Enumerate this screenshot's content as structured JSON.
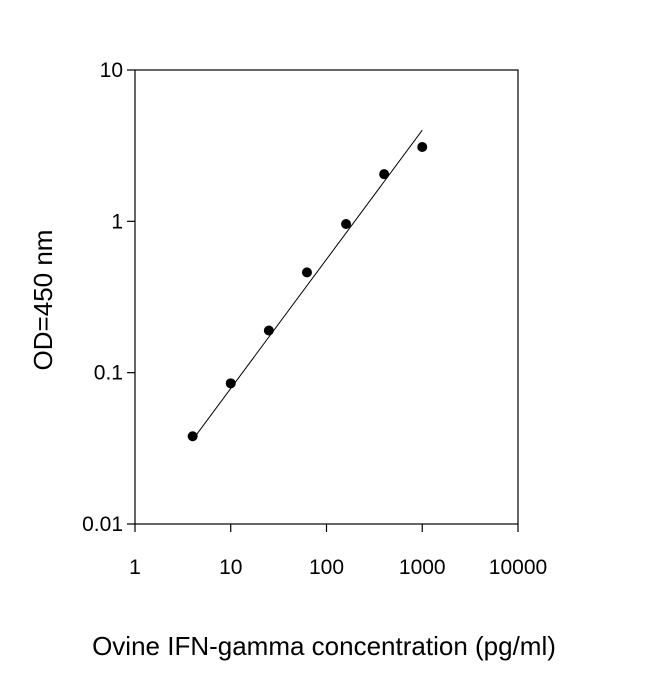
{
  "chart_data": {
    "type": "scatter",
    "title": "",
    "xlabel": "Ovine IFN-gamma concentration (pg/ml)",
    "ylabel": "OD=450 nm",
    "x_scale": "log",
    "y_scale": "log",
    "xlim": [
      1,
      10000
    ],
    "ylim": [
      0.01,
      10
    ],
    "x_ticks": [
      "1",
      "10",
      "100",
      "1000",
      "10000"
    ],
    "y_ticks": [
      "0.01",
      "0.1",
      "1",
      "10"
    ],
    "grid": false,
    "legend": "none",
    "series": [
      {
        "points": [
          {
            "x": 4,
            "y": 0.038
          },
          {
            "x": 10,
            "y": 0.085
          },
          {
            "x": 25,
            "y": 0.19
          },
          {
            "x": 62.5,
            "y": 0.46
          },
          {
            "x": 160,
            "y": 0.96
          },
          {
            "x": 400,
            "y": 2.05
          },
          {
            "x": 1000,
            "y": 3.1
          }
        ]
      }
    ],
    "fit_line": {
      "from": {
        "x": 4,
        "y": 0.036
      },
      "to": {
        "x": 1000,
        "y": 4.0
      }
    },
    "colors": {
      "marker": "#000000",
      "line": "#000000"
    }
  }
}
